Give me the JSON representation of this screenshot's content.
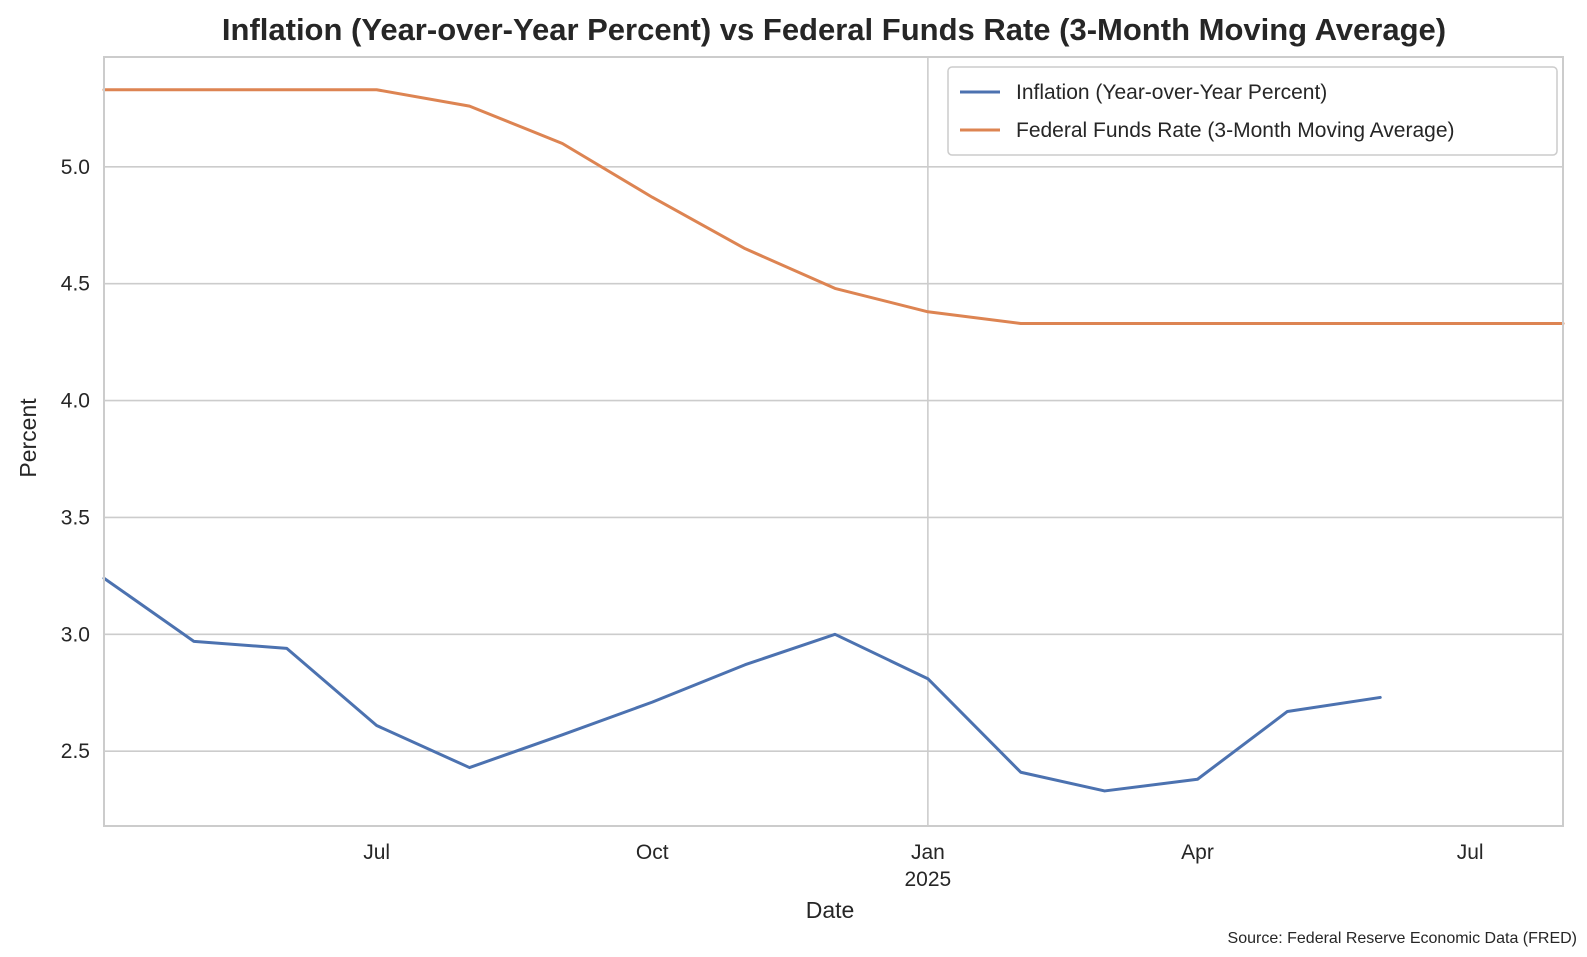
{
  "chart_data": {
    "type": "line",
    "title": "Inflation (Year-over-Year Percent) vs Federal Funds Rate (3-Month Moving Average)",
    "xlabel": "Date",
    "ylabel": "Percent",
    "source": "Source: Federal Reserve Economic Data (FRED)",
    "xlim": [
      "2024-04-01",
      "2025-08-01"
    ],
    "ylim": [
      2.18,
      5.47
    ],
    "yticks": [
      2.5,
      3.0,
      3.5,
      4.0,
      4.5,
      5.0
    ],
    "ytick_labels": [
      "2.5",
      "3.0",
      "3.5",
      "4.0",
      "4.5",
      "5.0"
    ],
    "xticks": [
      {
        "date": "2024-07-01",
        "label": "Jul",
        "sublabel": ""
      },
      {
        "date": "2024-10-01",
        "label": "Oct",
        "sublabel": ""
      },
      {
        "date": "2025-01-01",
        "label": "Jan",
        "sublabel": "2025"
      },
      {
        "date": "2025-04-01",
        "label": "Apr",
        "sublabel": ""
      },
      {
        "date": "2025-07-01",
        "label": "Jul",
        "sublabel": ""
      }
    ],
    "grid": true,
    "legend_position": "top-right",
    "series": [
      {
        "name": "Inflation (Year-over-Year Percent)",
        "color": "#4c72b0",
        "x": [
          "2024-04-01",
          "2024-05-01",
          "2024-06-01",
          "2024-07-01",
          "2024-08-01",
          "2024-09-01",
          "2024-10-01",
          "2024-11-01",
          "2024-12-01",
          "2025-01-01",
          "2025-02-01",
          "2025-03-01",
          "2025-04-01",
          "2025-05-01",
          "2025-06-01",
          "2025-07-01"
        ],
        "values": [
          3.24,
          2.97,
          2.94,
          2.61,
          2.43,
          2.57,
          2.71,
          2.87,
          3.0,
          2.81,
          2.41,
          2.33,
          2.38,
          2.67,
          2.73,
          null
        ]
      },
      {
        "name": "Federal Funds Rate (3-Month Moving Average)",
        "color": "#dd8452",
        "x": [
          "2024-04-01",
          "2024-05-01",
          "2024-06-01",
          "2024-07-01",
          "2024-08-01",
          "2024-09-01",
          "2024-10-01",
          "2024-11-01",
          "2024-12-01",
          "2025-01-01",
          "2025-02-01",
          "2025-03-01",
          "2025-04-01",
          "2025-05-01",
          "2025-06-01",
          "2025-07-01",
          "2025-08-01"
        ],
        "values": [
          5.33,
          5.33,
          5.33,
          5.33,
          5.26,
          5.1,
          4.87,
          4.65,
          4.48,
          4.38,
          4.33,
          4.33,
          4.33,
          4.33,
          4.33,
          4.33,
          4.33
        ]
      }
    ]
  }
}
